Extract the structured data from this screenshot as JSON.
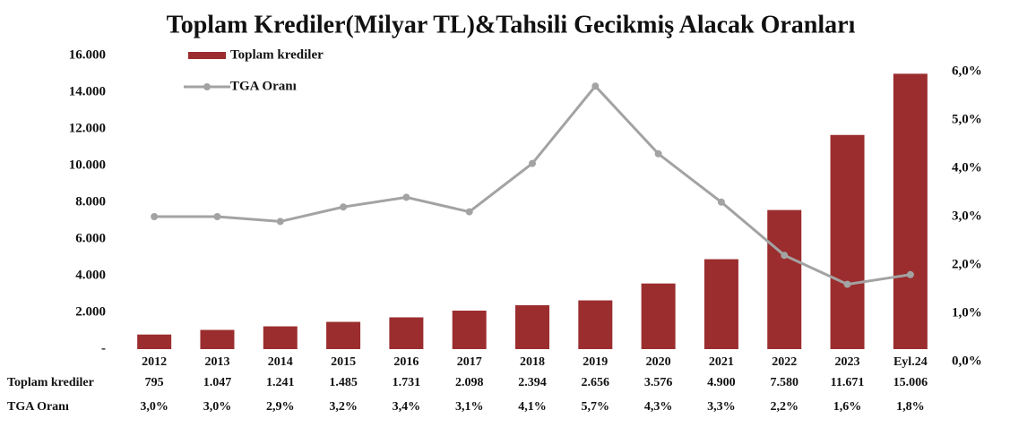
{
  "chart_data": {
    "type": "bar",
    "title": "Toplam Krediler(Milyar TL)&Tahsili Gecikmiş Alacak Oranları",
    "categories": [
      "2012",
      "2013",
      "2014",
      "2015",
      "2016",
      "2017",
      "2018",
      "2019",
      "2020",
      "2021",
      "2022",
      "2023",
      "Eyl.24"
    ],
    "series": [
      {
        "name": "Toplam krediler",
        "type": "bar",
        "color": "#9b2d2f",
        "values": [
          795,
          1047,
          1241,
          1485,
          1731,
          2098,
          2394,
          2656,
          3576,
          4900,
          7580,
          11671,
          15006
        ],
        "value_labels": [
          "795",
          "1.047",
          "1.241",
          "1.485",
          "1.731",
          "2.098",
          "2.394",
          "2.656",
          "3.576",
          "4.900",
          "7.580",
          "11.671",
          "15.006"
        ]
      },
      {
        "name": "TGA Oranı",
        "type": "line",
        "axis": "y2",
        "color": "#a3a3a3",
        "values": [
          3.0,
          3.0,
          2.9,
          3.2,
          3.4,
          3.1,
          4.1,
          5.7,
          4.3,
          3.3,
          2.2,
          1.6,
          1.8
        ],
        "value_labels": [
          "3,0%",
          "3,0%",
          "2,9%",
          "3,2%",
          "3,4%",
          "3,1%",
          "4,1%",
          "5,7%",
          "4,3%",
          "3,3%",
          "2,2%",
          "1,6%",
          "1,8%"
        ]
      }
    ],
    "ylim": [
      0,
      16000
    ],
    "yticks": [
      {
        "value": 0,
        "label": "-"
      },
      {
        "value": 2000,
        "label": "2.000"
      },
      {
        "value": 4000,
        "label": "4.000"
      },
      {
        "value": 6000,
        "label": "6.000"
      },
      {
        "value": 8000,
        "label": "8.000"
      },
      {
        "value": 10000,
        "label": "10.000"
      },
      {
        "value": 12000,
        "label": "12.000"
      },
      {
        "value": 14000,
        "label": "14.000"
      },
      {
        "value": 16000,
        "label": "16.000"
      }
    ],
    "y2lim": [
      0,
      6
    ],
    "y2ticks": [
      {
        "value": 0,
        "label": "0,0%"
      },
      {
        "value": 1,
        "label": "1,0%"
      },
      {
        "value": 2,
        "label": "2,0%"
      },
      {
        "value": 3,
        "label": "3,0%"
      },
      {
        "value": 4,
        "label": "4,0%"
      },
      {
        "value": 5,
        "label": "5,0%"
      },
      {
        "value": 6,
        "label": "6,0%"
      }
    ],
    "legend": "top-left",
    "grid": false
  }
}
